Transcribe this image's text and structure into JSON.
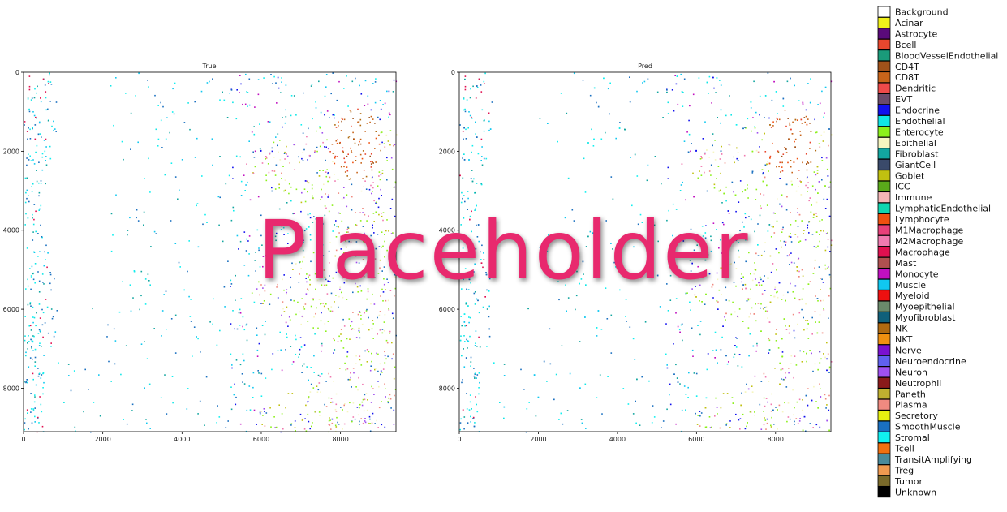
{
  "chart_data": [
    {
      "type": "scatter",
      "title": "True",
      "xlim": [
        0,
        9400
      ],
      "ylim": [
        9100,
        0
      ],
      "x_ticks": [
        0,
        2000,
        4000,
        6000,
        8000
      ],
      "y_ticks": [
        0,
        2000,
        4000,
        6000,
        8000
      ],
      "x_tick_labels": [
        "0",
        "2000",
        "4000",
        "6000",
        "8000"
      ],
      "y_tick_labels": [
        "0",
        "2000",
        "4000",
        "6000",
        "8000"
      ]
    },
    {
      "type": "scatter",
      "title": "Pred",
      "xlim": [
        0,
        9400
      ],
      "ylim": [
        9100,
        0
      ],
      "x_ticks": [
        0,
        2000,
        4000,
        6000,
        8000
      ],
      "y_ticks": [
        0,
        2000,
        4000,
        6000,
        8000
      ],
      "x_tick_labels": [
        "0",
        "2000",
        "4000",
        "6000",
        "8000"
      ],
      "y_tick_labels": [
        "0",
        "2000",
        "4000",
        "6000",
        "8000"
      ]
    }
  ],
  "legend": {
    "placement": "right",
    "entries": [
      {
        "label": "Background",
        "color": "#ffffff"
      },
      {
        "label": "Acinar",
        "color": "#f0f01a"
      },
      {
        "label": "Astrocyte",
        "color": "#5a0a7a"
      },
      {
        "label": "Bcell",
        "color": "#e8472e"
      },
      {
        "label": "BloodVesselEndothelial",
        "color": "#1a9b7a"
      },
      {
        "label": "CD4T",
        "color": "#a0521a"
      },
      {
        "label": "CD8T",
        "color": "#c8641a"
      },
      {
        "label": "Dendritic",
        "color": "#ef4a4a"
      },
      {
        "label": "EVT",
        "color": "#6a4a6a"
      },
      {
        "label": "Endocrine",
        "color": "#1010ee"
      },
      {
        "label": "Endothelial",
        "color": "#10e6e6"
      },
      {
        "label": "Enterocyte",
        "color": "#8cf01a"
      },
      {
        "label": "Epithelial",
        "color": "#f6f6c0"
      },
      {
        "label": "Fibroblast",
        "color": "#12a6a0"
      },
      {
        "label": "GiantCell",
        "color": "#3a4a6a"
      },
      {
        "label": "Goblet",
        "color": "#c0c010"
      },
      {
        "label": "ICC",
        "color": "#5aaa1a"
      },
      {
        "label": "Immune",
        "color": "#f4b6b6"
      },
      {
        "label": "LymphaticEndothelial",
        "color": "#10d6b0"
      },
      {
        "label": "Lymphocyte",
        "color": "#f05010"
      },
      {
        "label": "M1Macrophage",
        "color": "#e8407a"
      },
      {
        "label": "M2Macrophage",
        "color": "#f07ab0"
      },
      {
        "label": "Macrophage",
        "color": "#e01050"
      },
      {
        "label": "Mast",
        "color": "#b05050"
      },
      {
        "label": "Monocyte",
        "color": "#c010c0"
      },
      {
        "label": "Muscle",
        "color": "#10c8f0"
      },
      {
        "label": "Myeloid",
        "color": "#ee1010"
      },
      {
        "label": "Myoepithelial",
        "color": "#6a8a6a"
      },
      {
        "label": "Myofibroblast",
        "color": "#10607a"
      },
      {
        "label": "NK",
        "color": "#b06a10"
      },
      {
        "label": "NKT",
        "color": "#f09010"
      },
      {
        "label": "Nerve",
        "color": "#7a10d0"
      },
      {
        "label": "Neuroendocrine",
        "color": "#6060f0"
      },
      {
        "label": "Neuron",
        "color": "#a050f0"
      },
      {
        "label": "Neutrophil",
        "color": "#8a1a1a"
      },
      {
        "label": "Paneth",
        "color": "#c0b030"
      },
      {
        "label": "Plasma",
        "color": "#f08a80"
      },
      {
        "label": "Secretory",
        "color": "#e6f010"
      },
      {
        "label": "SmoothMuscle",
        "color": "#1a70c0"
      },
      {
        "label": "Stromal",
        "color": "#10f0f0"
      },
      {
        "label": "Tcell",
        "color": "#f07010"
      },
      {
        "label": "TransitAmplifying",
        "color": "#4a8a9a"
      },
      {
        "label": "Treg",
        "color": "#f09a50"
      },
      {
        "label": "Tumor",
        "color": "#7a6a2a"
      },
      {
        "label": "Unknown",
        "color": "#000000"
      }
    ]
  },
  "watermark": "Placeholder"
}
